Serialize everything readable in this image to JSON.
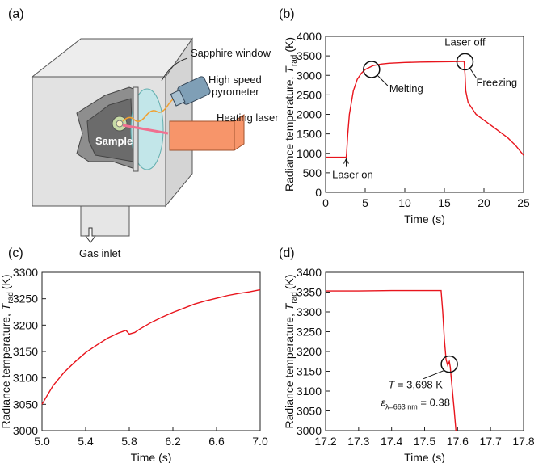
{
  "diagram": {
    "panel_label": "(a)",
    "labels": {
      "window": "Sapphire window",
      "pyrometer_1": "High speed",
      "pyrometer_2": "pyrometer",
      "laser": "Heating laser",
      "sample": "Sample",
      "inlet": "Gas inlet"
    }
  },
  "chart_data": [
    {
      "type": "line",
      "panel_label": "(b)",
      "x_label": "Time (s)",
      "y_label": {
        "text": "Radiance temperature, ",
        "symbol": "T",
        "sub": "rad",
        "unit": "(K)"
      },
      "color": "#e8141c",
      "x": [
        0,
        1,
        2,
        2.6,
        2.65,
        2.8,
        3,
        3.5,
        4,
        4.5,
        5,
        5.5,
        6,
        7,
        8,
        10,
        12,
        14,
        16,
        17.5,
        17.55,
        17.6,
        17.7,
        18,
        19,
        20,
        21,
        22,
        23,
        24,
        24.6,
        25
      ],
      "values": [
        900,
        900,
        900,
        900,
        1000,
        1500,
        2000,
        2600,
        2900,
        3050,
        3150,
        3200,
        3250,
        3290,
        3310,
        3330,
        3340,
        3345,
        3350,
        3360,
        3160,
        3050,
        2600,
        2300,
        2000,
        1850,
        1700,
        1550,
        1400,
        1200,
        1050,
        950
      ],
      "xlim": [
        0,
        25
      ],
      "xticks": [
        0,
        5,
        10,
        15,
        20,
        25
      ],
      "ylim": [
        0,
        4000
      ],
      "yticks": [
        0,
        500,
        1000,
        1500,
        2000,
        2500,
        3000,
        3500,
        4000
      ],
      "annotations": [
        {
          "text": "Laser on",
          "x": 2.6,
          "y": 900,
          "marker": "arrow"
        },
        {
          "text": "Melting",
          "x": 5.8,
          "y": 3150,
          "marker": "circle"
        },
        {
          "text": "Laser off",
          "x": 17.6,
          "y": 3350,
          "marker": "circle"
        },
        {
          "text": "Freezing",
          "x": 17.6,
          "y": 3350,
          "marker": "line"
        }
      ]
    },
    {
      "type": "line",
      "panel_label": "(c)",
      "x_label": "Time (s)",
      "y_label": {
        "text": "Radiance temperature, ",
        "symbol": "T",
        "sub": "rad",
        "unit": "(K)"
      },
      "color": "#e8141c",
      "x": [
        5.0,
        5.1,
        5.2,
        5.3,
        5.4,
        5.5,
        5.6,
        5.7,
        5.77,
        5.8,
        5.85,
        5.9,
        6.0,
        6.1,
        6.2,
        6.3,
        6.4,
        6.5,
        6.6,
        6.7,
        6.8,
        6.9,
        7.0
      ],
      "values": [
        3050,
        3085,
        3110,
        3130,
        3148,
        3162,
        3175,
        3185,
        3190,
        3183,
        3186,
        3193,
        3205,
        3215,
        3224,
        3232,
        3240,
        3246,
        3251,
        3256,
        3260,
        3263,
        3267
      ],
      "xlim": [
        5,
        7
      ],
      "xticks": [
        {
          "value": 5,
          "label": "5.0"
        },
        5.4,
        5.8,
        6.2,
        6.6,
        {
          "value": 7,
          "label": "7.0"
        }
      ],
      "ylim": [
        3000,
        3300
      ],
      "yticks": [
        3000,
        3050,
        3100,
        3150,
        3200,
        3250,
        3300
      ]
    },
    {
      "type": "line",
      "panel_label": "(d)",
      "x_label": "Time (s)",
      "y_label": {
        "text": "Radiance temperature, ",
        "symbol": "T",
        "sub": "rad",
        "unit": "(K)"
      },
      "color": "#e8141c",
      "x": [
        17.2,
        17.3,
        17.4,
        17.5,
        17.55,
        17.555,
        17.56,
        17.565,
        17.57,
        17.575,
        17.578,
        17.58,
        17.59,
        17.595
      ],
      "values": [
        3353,
        3353,
        3354,
        3354,
        3354,
        3300,
        3230,
        3180,
        3165,
        3175,
        3160,
        3140,
        3050,
        3000
      ],
      "xlim": [
        17.2,
        17.8
      ],
      "xticks": [
        17.2,
        17.3,
        17.4,
        17.5,
        17.6,
        17.7,
        17.8
      ],
      "ylim": [
        3000,
        3400
      ],
      "yticks": [
        3000,
        3050,
        3100,
        3150,
        3200,
        3250,
        3300,
        3350,
        3400
      ],
      "annotations": [
        {
          "x": 17.575,
          "y": 3168,
          "marker": "circle",
          "lines": [
            [
              "T",
              " = 3,698 K"
            ],
            [
              "ε",
              "λ=663 nm",
              " = 0.38"
            ]
          ]
        }
      ]
    }
  ]
}
